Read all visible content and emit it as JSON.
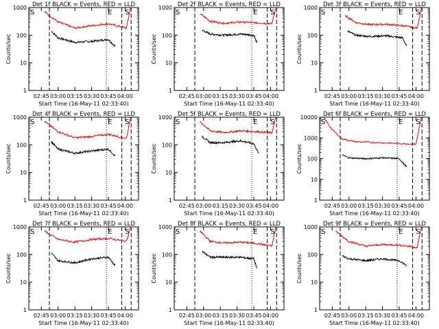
{
  "figure": {
    "ylabel": "Counts/sec",
    "xlabel": "Start Time (16-May-11 02:33:40)",
    "xticks": [
      "02:45",
      "03:00",
      "03:15",
      "03:30",
      "03:45",
      "04:00"
    ],
    "yticks": [
      "1",
      "10",
      "100",
      "1000"
    ],
    "yticks_panel6": [
      "1",
      "10",
      "100",
      "1000",
      "10000"
    ],
    "marker_S": "S",
    "marker_E": "E",
    "colors": {
      "events": "#000000",
      "lld": "#e00000",
      "axes": "#000000"
    }
  },
  "chart_data": [
    {
      "type": "line",
      "title": "Det 1f BLACK = Events, RED = LLD",
      "ylim": [
        1,
        1000
      ],
      "yscale": "log",
      "series": [
        {
          "name": "Events",
          "x": [
            2.9,
            3.0,
            3.25,
            3.5,
            3.75,
            3.85
          ],
          "y": [
            140,
            80,
            55,
            60,
            70,
            40
          ]
        },
        {
          "name": "LLD",
          "x": [
            2.8,
            3.0,
            3.25,
            3.5,
            3.75,
            4.02,
            4.08
          ],
          "y": [
            700,
            300,
            180,
            220,
            260,
            180,
            1000
          ]
        }
      ]
    },
    {
      "type": "line",
      "title": "Det 2f BLACK = Events, RED = LLD",
      "ylim": [
        1,
        1000
      ],
      "yscale": "log",
      "series": [
        {
          "name": "Events",
          "x": [
            2.98,
            3.1,
            3.3,
            3.55,
            3.75,
            3.8
          ],
          "y": [
            150,
            110,
            100,
            110,
            100,
            50
          ]
        },
        {
          "name": "LLD",
          "x": [
            2.95,
            3.1,
            3.3,
            3.55,
            3.8,
            4.02,
            4.08
          ],
          "y": [
            600,
            320,
            270,
            300,
            280,
            260,
            1000
          ]
        }
      ]
    },
    {
      "type": "line",
      "title": "Det 3f BLACK = Events, RED = LLD",
      "ylim": [
        1,
        1000
      ],
      "yscale": "log",
      "series": [
        {
          "name": "Events",
          "x": [
            2.98,
            3.1,
            3.3,
            3.55,
            3.8,
            3.86
          ],
          "y": [
            140,
            100,
            90,
            95,
            80,
            40
          ]
        },
        {
          "name": "LLD",
          "x": [
            2.95,
            3.1,
            3.3,
            3.55,
            3.8,
            4.02,
            4.08
          ],
          "y": [
            500,
            290,
            240,
            250,
            220,
            180,
            1000
          ]
        }
      ]
    },
    {
      "type": "line",
      "title": "Det 4f BLACK = Events, RED = LLD",
      "ylim": [
        1,
        1000
      ],
      "yscale": "log",
      "series": [
        {
          "name": "Events",
          "x": [
            2.9,
            3.0,
            3.25,
            3.5,
            3.75,
            3.85
          ],
          "y": [
            130,
            70,
            50,
            60,
            70,
            40
          ]
        },
        {
          "name": "LLD",
          "x": [
            2.8,
            3.0,
            3.25,
            3.5,
            3.75,
            4.02,
            4.08
          ],
          "y": [
            700,
            300,
            180,
            200,
            240,
            170,
            1000
          ]
        }
      ]
    },
    {
      "type": "line",
      "title": "Det 5f BLACK = Events, RED = LLD",
      "ylim": [
        1,
        1000
      ],
      "yscale": "log",
      "series": [
        {
          "name": "Events",
          "x": [
            2.98,
            3.1,
            3.3,
            3.55,
            3.75,
            3.82
          ],
          "y": [
            200,
            120,
            120,
            140,
            110,
            50
          ]
        },
        {
          "name": "LLD",
          "x": [
            2.95,
            3.1,
            3.3,
            3.55,
            3.8,
            4.02,
            4.08
          ],
          "y": [
            700,
            320,
            280,
            320,
            300,
            270,
            1000
          ]
        }
      ]
    },
    {
      "type": "line",
      "title": "Det 6f BLACK = Events, RED = LLD",
      "ylim": [
        1,
        10000
      ],
      "yscale": "log",
      "series": [
        {
          "name": "Events",
          "x": [
            2.9,
            3.0,
            3.25,
            3.5,
            3.75,
            3.86
          ],
          "y": [
            150,
            110,
            100,
            110,
            100,
            40
          ]
        },
        {
          "name": "LLD",
          "x": [
            2.62,
            2.75,
            2.9,
            3.1,
            3.4,
            3.7,
            4.0,
            4.08
          ],
          "y": [
            10000,
            2500,
            900,
            650,
            600,
            550,
            500,
            10000
          ]
        }
      ]
    },
    {
      "type": "line",
      "title": "Det 7f BLACK = Events, RED = LLD",
      "ylim": [
        1,
        1000
      ],
      "yscale": "log",
      "series": [
        {
          "name": "Events",
          "x": [
            2.9,
            3.0,
            3.25,
            3.5,
            3.75,
            3.85
          ],
          "y": [
            110,
            60,
            50,
            70,
            80,
            40
          ]
        },
        {
          "name": "LLD",
          "x": [
            2.8,
            3.0,
            3.25,
            3.5,
            3.75,
            4.02,
            4.08
          ],
          "y": [
            700,
            350,
            280,
            350,
            380,
            300,
            1000
          ]
        }
      ]
    },
    {
      "type": "line",
      "title": "Det 8f BLACK = Events, RED = LLD",
      "ylim": [
        1,
        1000
      ],
      "yscale": "log",
      "series": [
        {
          "name": "Events",
          "x": [
            2.98,
            3.1,
            3.3,
            3.55,
            3.75,
            3.8
          ],
          "y": [
            130,
            80,
            80,
            80,
            70,
            30
          ]
        },
        {
          "name": "LLD",
          "x": [
            2.95,
            3.1,
            3.3,
            3.55,
            3.8,
            4.02,
            4.08
          ],
          "y": [
            700,
            300,
            260,
            280,
            250,
            200,
            1000
          ]
        }
      ]
    },
    {
      "type": "line",
      "title": "Det 9f BLACK = Events, RED = LLD",
      "ylim": [
        1,
        1000
      ],
      "yscale": "log",
      "series": [
        {
          "name": "Events",
          "x": [
            2.9,
            3.0,
            3.25,
            3.5,
            3.75,
            3.86
          ],
          "y": [
            90,
            70,
            60,
            70,
            60,
            40
          ]
        },
        {
          "name": "LLD",
          "x": [
            2.8,
            3.0,
            3.25,
            3.5,
            3.75,
            4.02,
            4.08
          ],
          "y": [
            700,
            300,
            200,
            230,
            220,
            180,
            1000
          ]
        }
      ]
    }
  ]
}
